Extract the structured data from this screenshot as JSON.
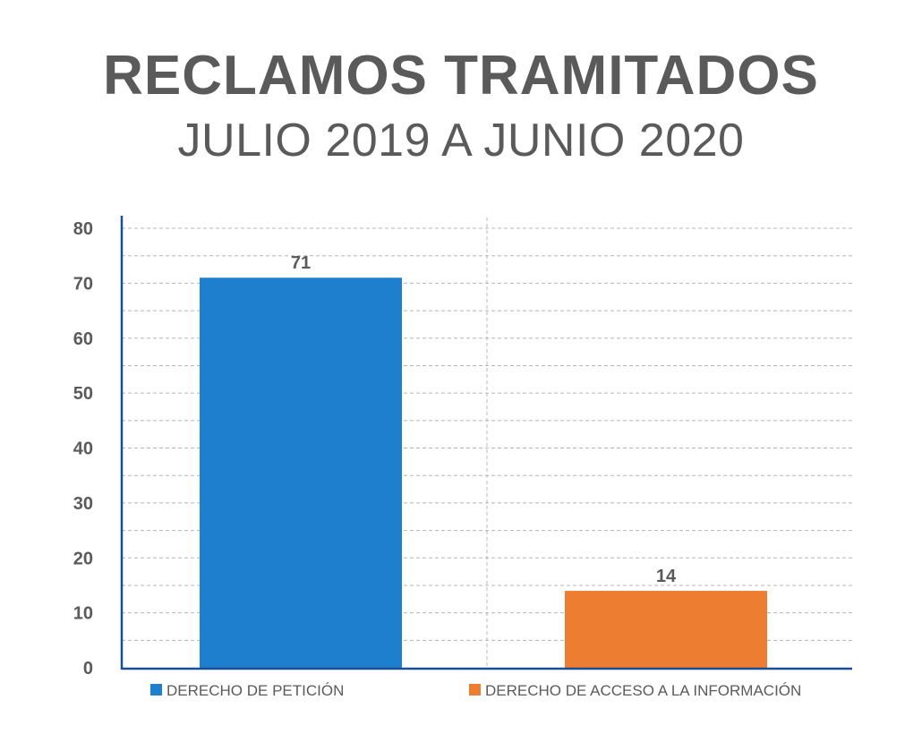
{
  "header": {
    "title": "RECLAMOS TRAMITADOS",
    "subtitle": "JULIO 2019 A JUNIO 2020"
  },
  "chart_data": {
    "type": "bar",
    "title": "RECLAMOS TRAMITADOS",
    "subtitle": "JULIO 2019 A JUNIO 2020",
    "categories": [
      "DERECHO DE PETICIÓN",
      "DERECHO DE ACCESO A LA INFORMACIÓN"
    ],
    "values": [
      71,
      14
    ],
    "colors": [
      "#1f7fcf",
      "#ed7d31"
    ],
    "data_labels": [
      "71",
      "14"
    ],
    "ylim": [
      0,
      80
    ],
    "yticks": [
      0,
      10,
      20,
      30,
      40,
      50,
      60,
      70,
      80
    ],
    "ytick_labels": [
      "0",
      "10",
      "20",
      "30",
      "40",
      "50",
      "60",
      "70",
      "80"
    ],
    "xlabel": "",
    "ylabel": "",
    "grid": true,
    "grid_style": "dashed",
    "legend_position": "bottom",
    "axis_color": "#1a4e9a"
  }
}
